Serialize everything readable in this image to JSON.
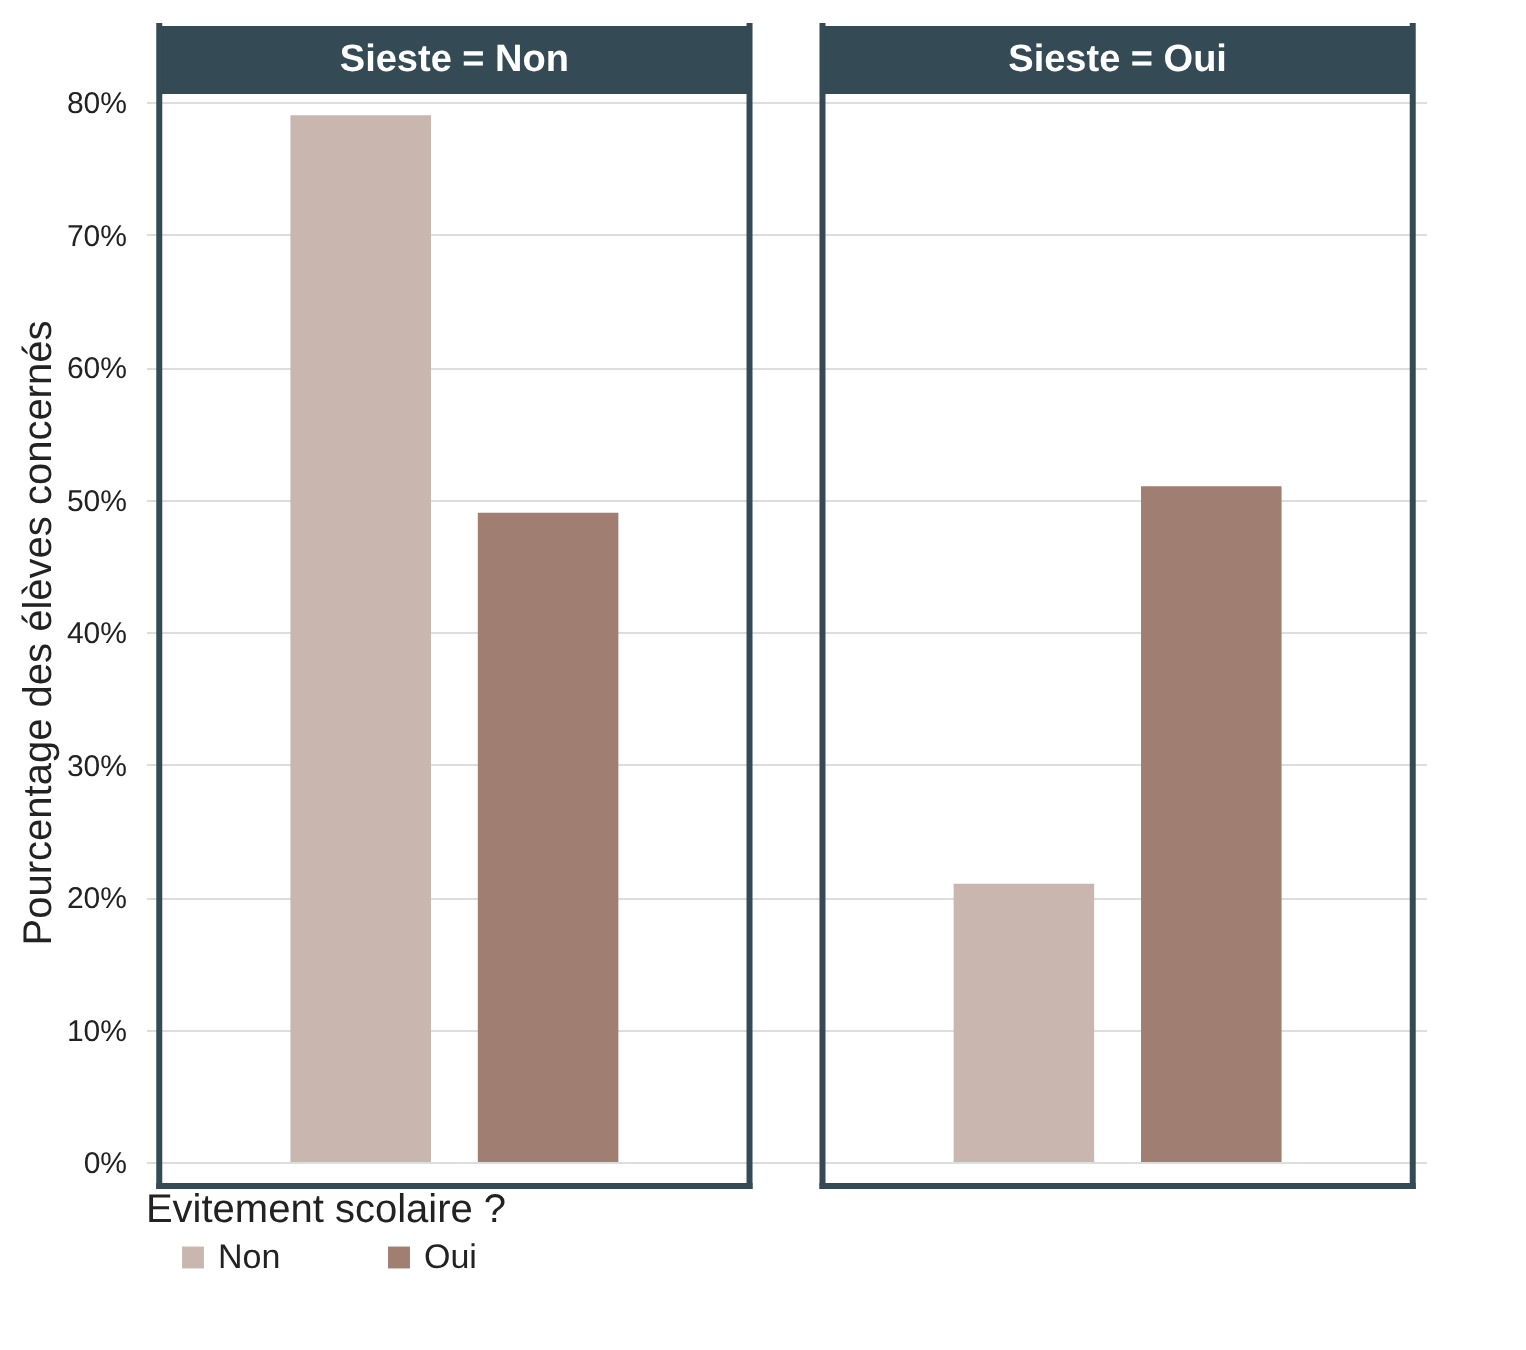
{
  "chart_data": {
    "type": "bar",
    "ylabel": "Pourcentage des élèves concernés",
    "legend_title": "Evitement scolaire ?",
    "categories": [
      "Sieste = Non",
      "Sieste = Oui"
    ],
    "series": [
      {
        "name": "Non",
        "color": "#c9b7af",
        "values": [
          79,
          21
        ]
      },
      {
        "name": "Oui",
        "color": "#a07e72",
        "values": [
          49,
          51
        ]
      }
    ],
    "ylim": [
      0,
      80
    ],
    "yticks": [
      {
        "value": 0,
        "label": "0%"
      },
      {
        "value": 10,
        "label": "10%"
      },
      {
        "value": 20,
        "label": "20%"
      },
      {
        "value": 30,
        "label": "30%"
      },
      {
        "value": 40,
        "label": "40%"
      },
      {
        "value": 50,
        "label": "50%"
      },
      {
        "value": 60,
        "label": "60%"
      },
      {
        "value": 70,
        "label": "70%"
      },
      {
        "value": 80,
        "label": "80%"
      }
    ],
    "grid": "y",
    "legend": "bottom"
  }
}
